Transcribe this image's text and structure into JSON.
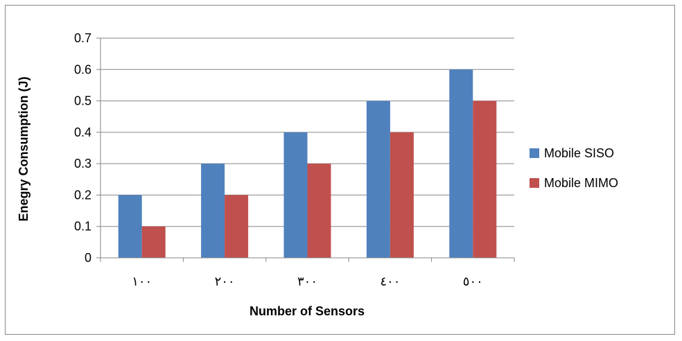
{
  "chart_data": {
    "type": "bar",
    "categories": [
      "١٠٠",
      "٢٠٠",
      "٣٠٠",
      "٤٠٠",
      "٥٠٠"
    ],
    "series": [
      {
        "name": "Mobile SISO",
        "values": [
          0.2,
          0.3,
          0.4,
          0.5,
          0.6
        ],
        "color": "#4F81BD"
      },
      {
        "name": "Mobile MIMO",
        "values": [
          0.1,
          0.2,
          0.3,
          0.4,
          0.5
        ],
        "color": "#C0504D"
      }
    ],
    "title": "",
    "xlabel": "Number of Sensors",
    "ylabel": "Enegry Consumption (J)",
    "ylim": [
      0,
      0.7
    ],
    "yticks": [
      "0",
      "0.1",
      "0.2",
      "0.3",
      "0.4",
      "0.5",
      "0.6",
      "0.7"
    ],
    "grid": true,
    "legend_position": "right"
  }
}
